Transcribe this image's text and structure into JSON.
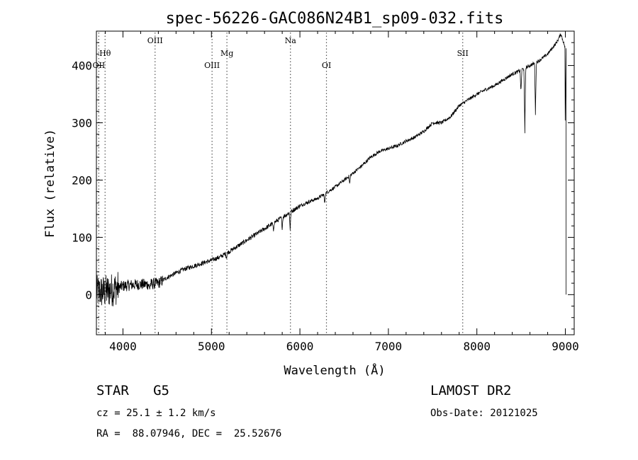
{
  "chart_data": {
    "type": "line",
    "title": "spec-56226-GAC086N24B1_sp09-032.fits",
    "xlabel": "Wavelength (Å)",
    "ylabel": "Flux (relative)",
    "xlim": [
      3700,
      9100
    ],
    "ylim": [
      -70,
      460
    ],
    "xticks": [
      4000,
      5000,
      6000,
      7000,
      8000,
      9000
    ],
    "yticks": [
      0,
      100,
      200,
      300,
      400
    ],
    "grid": false,
    "line_color": "#000000",
    "marker_color": "#555555",
    "lines": [
      {
        "label": "Hθ",
        "wavelength": 3798,
        "row": "upper"
      },
      {
        "label": "OII",
        "wavelength": 3727,
        "row": "lower"
      },
      {
        "label": "OIII",
        "wavelength": 4363,
        "row": "top"
      },
      {
        "label": "OIII",
        "wavelength": 5007,
        "row": "lower"
      },
      {
        "label": "Mg",
        "wavelength": 5175,
        "row": "upper"
      },
      {
        "label": "Na",
        "wavelength": 5893,
        "row": "top"
      },
      {
        "label": "OI",
        "wavelength": 6300,
        "row": "lower"
      },
      {
        "label": "SII",
        "wavelength": 7840,
        "row": "upper"
      }
    ],
    "continuum": [
      [
        3700,
        5
      ],
      [
        3800,
        5
      ],
      [
        3900,
        10
      ],
      [
        4000,
        15
      ],
      [
        4100,
        17
      ],
      [
        4200,
        18
      ],
      [
        4300,
        18
      ],
      [
        4400,
        20
      ],
      [
        4500,
        30
      ],
      [
        4600,
        38
      ],
      [
        4700,
        45
      ],
      [
        4800,
        50
      ],
      [
        4900,
        55
      ],
      [
        5000,
        60
      ],
      [
        5100,
        66
      ],
      [
        5200,
        75
      ],
      [
        5300,
        85
      ],
      [
        5400,
        95
      ],
      [
        5500,
        105
      ],
      [
        5600,
        115
      ],
      [
        5700,
        125
      ],
      [
        5800,
        135
      ],
      [
        5900,
        145
      ],
      [
        6000,
        155
      ],
      [
        6100,
        162
      ],
      [
        6200,
        168
      ],
      [
        6300,
        178
      ],
      [
        6400,
        188
      ],
      [
        6500,
        200
      ],
      [
        6600,
        212
      ],
      [
        6700,
        225
      ],
      [
        6800,
        240
      ],
      [
        6900,
        250
      ],
      [
        7000,
        255
      ],
      [
        7100,
        260
      ],
      [
        7200,
        268
      ],
      [
        7300,
        275
      ],
      [
        7400,
        285
      ],
      [
        7500,
        300
      ],
      [
        7600,
        300
      ],
      [
        7700,
        310
      ],
      [
        7800,
        330
      ],
      [
        7900,
        340
      ],
      [
        8000,
        350
      ],
      [
        8100,
        358
      ],
      [
        8200,
        365
      ],
      [
        8300,
        375
      ],
      [
        8400,
        385
      ],
      [
        8500,
        392
      ],
      [
        8600,
        400
      ],
      [
        8700,
        408
      ],
      [
        8800,
        420
      ],
      [
        8900,
        440
      ],
      [
        8950,
        455
      ],
      [
        9000,
        430
      ]
    ],
    "absorption": [
      [
        4300,
        8
      ],
      [
        5170,
        8
      ],
      [
        5700,
        15
      ],
      [
        5800,
        18
      ],
      [
        5890,
        30
      ],
      [
        6280,
        18
      ],
      [
        6563,
        15
      ],
      [
        8498,
        40
      ],
      [
        8542,
        115
      ],
      [
        8662,
        90
      ],
      [
        9005,
        430
      ]
    ]
  },
  "info": {
    "object": "STAR   G5",
    "survey": "LAMOST DR2",
    "cz": "cz = 25.1 ± 1.2 km/s",
    "obs_date": "Obs-Date: 20121025",
    "coords": "RA =  88.07946, DEC =  25.52676"
  }
}
